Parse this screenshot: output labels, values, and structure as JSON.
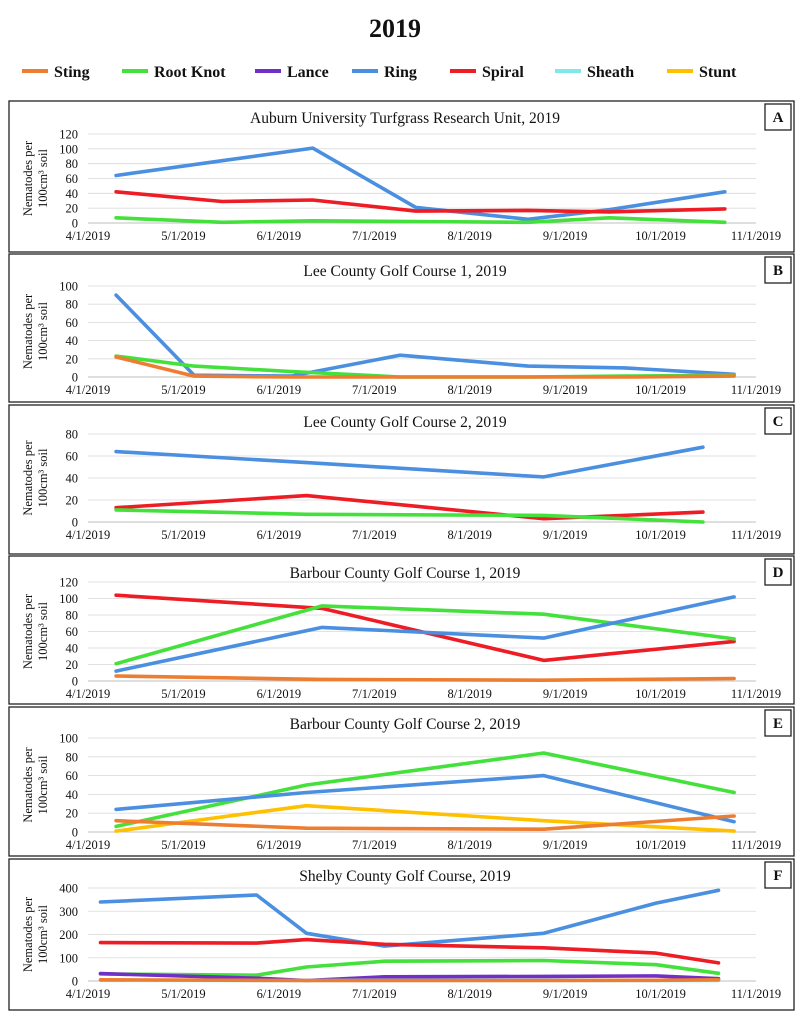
{
  "title": "2019",
  "colors": {
    "Sting": "#ed7d31",
    "Root Knot": "#44e03c",
    "Lance": "#7030c8",
    "Ring": "#4a8fe0",
    "Spiral": "#ee1c24",
    "Sheath": "#7fe8e8",
    "Stunt": "#ffc000"
  },
  "legend": [
    "Sting",
    "Root Knot",
    "Lance",
    "Ring",
    "Spiral",
    "Sheath",
    "Stunt"
  ],
  "ylabel_line1": "Nematodes per",
  "ylabel_line2": "100cm³ soil",
  "x_ticks": [
    "4/1/2019",
    "5/1/2019",
    "6/1/2019",
    "7/1/2019",
    "8/1/2019",
    "9/1/2019",
    "10/1/2019",
    "11/1/2019"
  ],
  "chart_data": [
    {
      "type": "line",
      "letter": "A",
      "title": "Auburn University Turfgrass Research Unit, 2019",
      "xlim": [
        "2019-04-01",
        "2019-11-01"
      ],
      "ylim": [
        0,
        120
      ],
      "yticks": [
        0,
        20,
        40,
        60,
        80,
        100,
        120
      ],
      "series": [
        {
          "name": "Ring",
          "x": [
            "2019-04-10",
            "2019-05-14",
            "2019-06-12",
            "2019-07-15",
            "2019-08-20",
            "2019-09-15",
            "2019-10-22"
          ],
          "values": [
            64,
            84,
            101,
            21,
            5,
            18,
            42
          ]
        },
        {
          "name": "Spiral",
          "x": [
            "2019-04-10",
            "2019-05-14",
            "2019-06-12",
            "2019-07-15",
            "2019-08-20",
            "2019-09-15",
            "2019-10-22"
          ],
          "values": [
            42,
            29,
            31,
            16,
            17,
            15,
            19
          ]
        },
        {
          "name": "Root Knot",
          "x": [
            "2019-04-10",
            "2019-05-14",
            "2019-06-12",
            "2019-07-15",
            "2019-08-20",
            "2019-09-15",
            "2019-10-22"
          ],
          "values": [
            7,
            1,
            3,
            2,
            1,
            7,
            1
          ]
        }
      ]
    },
    {
      "type": "line",
      "letter": "B",
      "title": "Lee County Golf Course 1, 2019",
      "xlim": [
        "2019-04-01",
        "2019-11-01"
      ],
      "ylim": [
        0,
        100
      ],
      "yticks": [
        0,
        20,
        40,
        60,
        80,
        100
      ],
      "series": [
        {
          "name": "Ring",
          "x": [
            "2019-04-10",
            "2019-05-05",
            "2019-06-05",
            "2019-07-10",
            "2019-08-20",
            "2019-09-20",
            "2019-10-25"
          ],
          "values": [
            90,
            2,
            1,
            24,
            12,
            10,
            3
          ]
        },
        {
          "name": "Root Knot",
          "x": [
            "2019-04-10",
            "2019-05-05",
            "2019-06-05",
            "2019-07-10",
            "2019-08-20",
            "2019-09-20",
            "2019-10-25"
          ],
          "values": [
            23,
            12,
            6,
            0,
            0,
            1,
            2
          ]
        },
        {
          "name": "Sting",
          "x": [
            "2019-04-10",
            "2019-05-05",
            "2019-06-05",
            "2019-07-10",
            "2019-08-20",
            "2019-09-20",
            "2019-10-25"
          ],
          "values": [
            22,
            1,
            0,
            0,
            0,
            0,
            1
          ]
        }
      ]
    },
    {
      "type": "line",
      "letter": "C",
      "title": "Lee County Golf Course 2, 2019",
      "xlim": [
        "2019-04-01",
        "2019-11-01"
      ],
      "ylim": [
        0,
        80
      ],
      "yticks": [
        0,
        20,
        40,
        60,
        80
      ],
      "series": [
        {
          "name": "Ring",
          "x": [
            "2019-04-10",
            "2019-06-10",
            "2019-08-25",
            "2019-10-15"
          ],
          "values": [
            64,
            54,
            41,
            68
          ]
        },
        {
          "name": "Spiral",
          "x": [
            "2019-04-10",
            "2019-06-10",
            "2019-08-25",
            "2019-10-15"
          ],
          "values": [
            13,
            24,
            3,
            9
          ]
        },
        {
          "name": "Root Knot",
          "x": [
            "2019-04-10",
            "2019-06-10",
            "2019-08-25",
            "2019-10-15"
          ],
          "values": [
            11,
            7,
            6,
            0
          ]
        }
      ]
    },
    {
      "type": "line",
      "letter": "D",
      "title": "Barbour County Golf Course 1, 2019",
      "xlim": [
        "2019-04-01",
        "2019-11-01"
      ],
      "ylim": [
        0,
        120
      ],
      "yticks": [
        0,
        20,
        40,
        60,
        80,
        100,
        120
      ],
      "series": [
        {
          "name": "Spiral",
          "x": [
            "2019-04-10",
            "2019-06-15",
            "2019-08-25",
            "2019-10-25"
          ],
          "values": [
            104,
            88,
            25,
            48
          ]
        },
        {
          "name": "Root Knot",
          "x": [
            "2019-04-10",
            "2019-06-15",
            "2019-08-25",
            "2019-10-25"
          ],
          "values": [
            21,
            91,
            81,
            51
          ]
        },
        {
          "name": "Ring",
          "x": [
            "2019-04-10",
            "2019-06-15",
            "2019-08-25",
            "2019-10-25"
          ],
          "values": [
            12,
            65,
            52,
            102
          ]
        },
        {
          "name": "Sting",
          "x": [
            "2019-04-10",
            "2019-06-15",
            "2019-08-25",
            "2019-10-25"
          ],
          "values": [
            6,
            2,
            1,
            3
          ]
        }
      ]
    },
    {
      "type": "line",
      "letter": "E",
      "title": "Barbour County Golf Course 2, 2019",
      "xlim": [
        "2019-04-01",
        "2019-11-01"
      ],
      "ylim": [
        0,
        100
      ],
      "yticks": [
        0,
        20,
        40,
        60,
        80,
        100
      ],
      "series": [
        {
          "name": "Root Knot",
          "x": [
            "2019-04-10",
            "2019-06-10",
            "2019-08-25",
            "2019-10-25"
          ],
          "values": [
            6,
            50,
            84,
            42
          ]
        },
        {
          "name": "Ring",
          "x": [
            "2019-04-10",
            "2019-06-10",
            "2019-08-25",
            "2019-10-25"
          ],
          "values": [
            24,
            42,
            60,
            11
          ]
        },
        {
          "name": "Stunt",
          "x": [
            "2019-04-10",
            "2019-06-10",
            "2019-08-25",
            "2019-10-25"
          ],
          "values": [
            1,
            28,
            12,
            1
          ]
        },
        {
          "name": "Sting",
          "x": [
            "2019-04-10",
            "2019-06-10",
            "2019-08-25",
            "2019-10-25"
          ],
          "values": [
            12,
            4,
            3,
            17
          ]
        }
      ]
    },
    {
      "type": "line",
      "letter": "F",
      "title": "Shelby County Golf Course, 2019",
      "xlim": [
        "2019-04-01",
        "2019-11-01"
      ],
      "ylim": [
        0,
        400
      ],
      "yticks": [
        0,
        100,
        200,
        300,
        400
      ],
      "series": [
        {
          "name": "Ring",
          "x": [
            "2019-04-05",
            "2019-05-25",
            "2019-06-10",
            "2019-07-05",
            "2019-08-25",
            "2019-09-30",
            "2019-10-20"
          ],
          "values": [
            340,
            370,
            205,
            150,
            205,
            335,
            390
          ]
        },
        {
          "name": "Spiral",
          "x": [
            "2019-04-05",
            "2019-05-25",
            "2019-06-10",
            "2019-07-05",
            "2019-08-25",
            "2019-09-30",
            "2019-10-20"
          ],
          "values": [
            165,
            163,
            178,
            158,
            143,
            120,
            78
          ]
        },
        {
          "name": "Root Knot",
          "x": [
            "2019-04-05",
            "2019-05-25",
            "2019-06-10",
            "2019-07-05",
            "2019-08-25",
            "2019-09-30",
            "2019-10-20"
          ],
          "values": [
            30,
            25,
            60,
            85,
            88,
            70,
            33
          ]
        },
        {
          "name": "Lance",
          "x": [
            "2019-04-05",
            "2019-05-25",
            "2019-06-10",
            "2019-07-05",
            "2019-08-25",
            "2019-09-30",
            "2019-10-20"
          ],
          "values": [
            32,
            12,
            2,
            18,
            20,
            22,
            10
          ]
        },
        {
          "name": "Sheath",
          "x": [
            "2019-04-05",
            "2019-05-25",
            "2019-06-10",
            "2019-07-05",
            "2019-08-25",
            "2019-09-30",
            "2019-10-20"
          ],
          "values": [
            3,
            2,
            2,
            3,
            3,
            2,
            2
          ]
        },
        {
          "name": "Sting",
          "x": [
            "2019-04-05",
            "2019-05-25",
            "2019-06-10",
            "2019-07-05",
            "2019-08-25",
            "2019-09-30",
            "2019-10-20"
          ],
          "values": [
            5,
            3,
            2,
            2,
            2,
            3,
            5
          ]
        }
      ]
    }
  ]
}
